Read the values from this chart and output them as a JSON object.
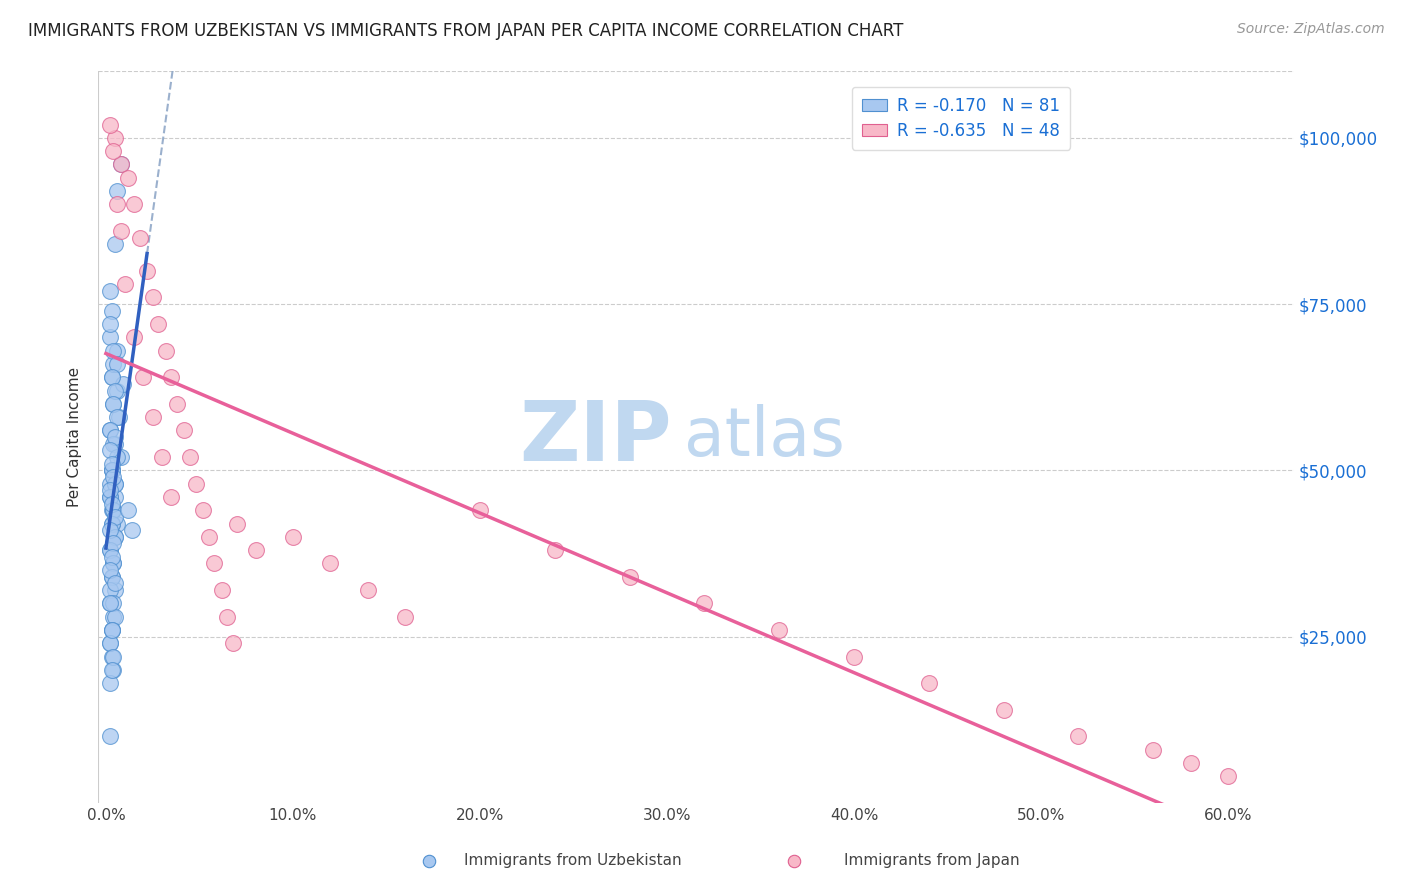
{
  "title": "IMMIGRANTS FROM UZBEKISTAN VS IMMIGRANTS FROM JAPAN PER CAPITA INCOME CORRELATION CHART",
  "source": "Source: ZipAtlas.com",
  "ylabel": "Per Capita Income",
  "xlabel_ticks": [
    "0.0%",
    "10.0%",
    "20.0%",
    "30.0%",
    "40.0%",
    "50.0%",
    "60.0%"
  ],
  "xlabel_vals": [
    0.0,
    0.1,
    0.2,
    0.3,
    0.4,
    0.5,
    0.6
  ],
  "ytick_labels": [
    "$25,000",
    "$50,000",
    "$75,000",
    "$100,000"
  ],
  "ytick_vals": [
    25000,
    50000,
    75000,
    100000
  ],
  "ylim": [
    0,
    110000
  ],
  "xlim": [
    -0.004,
    0.635
  ],
  "R_uzbekistan": -0.17,
  "N_uzbekistan": 81,
  "R_japan": -0.635,
  "N_japan": 48,
  "color_uzbekistan_fill": "#A8C8F0",
  "color_uzbekistan_edge": "#5090D0",
  "color_japan_fill": "#F8B8C8",
  "color_japan_edge": "#E06090",
  "color_trendline_uzbekistan": "#3060C0",
  "color_trendline_japan": "#E8609A",
  "color_trendline_dashed": "#90A8C8",
  "watermark_zip_color": "#C0D8F0",
  "watermark_atlas_color": "#C0D8F0",
  "background_color": "#FFFFFF",
  "uzbekistan_x": [
    0.002,
    0.003,
    0.005,
    0.006,
    0.008,
    0.003,
    0.006,
    0.009,
    0.004,
    0.007,
    0.002,
    0.005,
    0.008,
    0.003,
    0.006,
    0.004,
    0.002,
    0.005,
    0.003,
    0.006,
    0.002,
    0.004,
    0.006,
    0.002,
    0.003,
    0.005,
    0.004,
    0.006,
    0.002,
    0.004,
    0.006,
    0.003,
    0.005,
    0.002,
    0.004,
    0.003,
    0.005,
    0.002,
    0.004,
    0.003,
    0.005,
    0.002,
    0.004,
    0.003,
    0.002,
    0.003,
    0.004,
    0.002,
    0.003,
    0.005,
    0.002,
    0.004,
    0.003,
    0.005,
    0.002,
    0.004,
    0.003,
    0.002,
    0.004,
    0.005,
    0.003,
    0.002,
    0.004,
    0.003,
    0.005,
    0.002,
    0.003,
    0.004,
    0.002,
    0.003,
    0.005,
    0.002,
    0.004,
    0.003,
    0.002,
    0.005,
    0.012,
    0.014,
    0.002,
    0.003,
    0.002
  ],
  "uzbekistan_y": [
    77000,
    74000,
    84000,
    92000,
    96000,
    64000,
    62000,
    63000,
    60000,
    58000,
    56000,
    54000,
    52000,
    50000,
    68000,
    66000,
    48000,
    46000,
    44000,
    42000,
    70000,
    68000,
    66000,
    72000,
    64000,
    62000,
    60000,
    58000,
    56000,
    54000,
    52000,
    50000,
    48000,
    46000,
    44000,
    42000,
    40000,
    38000,
    36000,
    34000,
    32000,
    30000,
    28000,
    26000,
    24000,
    22000,
    20000,
    18000,
    50000,
    48000,
    46000,
    44000,
    42000,
    40000,
    38000,
    36000,
    34000,
    32000,
    30000,
    28000,
    26000,
    24000,
    22000,
    20000,
    55000,
    53000,
    51000,
    49000,
    47000,
    45000,
    43000,
    41000,
    39000,
    37000,
    35000,
    33000,
    44000,
    41000,
    10000,
    26000,
    30000
  ],
  "japan_x": [
    0.005,
    0.008,
    0.012,
    0.015,
    0.018,
    0.022,
    0.025,
    0.028,
    0.032,
    0.035,
    0.038,
    0.042,
    0.045,
    0.048,
    0.052,
    0.055,
    0.058,
    0.062,
    0.065,
    0.068,
    0.002,
    0.004,
    0.006,
    0.008,
    0.01,
    0.015,
    0.02,
    0.025,
    0.03,
    0.035,
    0.1,
    0.12,
    0.14,
    0.16,
    0.2,
    0.24,
    0.28,
    0.32,
    0.36,
    0.4,
    0.44,
    0.48,
    0.52,
    0.56,
    0.58,
    0.6,
    0.07,
    0.08
  ],
  "japan_y": [
    100000,
    96000,
    94000,
    90000,
    85000,
    80000,
    76000,
    72000,
    68000,
    64000,
    60000,
    56000,
    52000,
    48000,
    44000,
    40000,
    36000,
    32000,
    28000,
    24000,
    102000,
    98000,
    90000,
    86000,
    78000,
    70000,
    64000,
    58000,
    52000,
    46000,
    40000,
    36000,
    32000,
    28000,
    44000,
    38000,
    34000,
    30000,
    26000,
    22000,
    18000,
    14000,
    10000,
    8000,
    6000,
    4000,
    42000,
    38000
  ]
}
